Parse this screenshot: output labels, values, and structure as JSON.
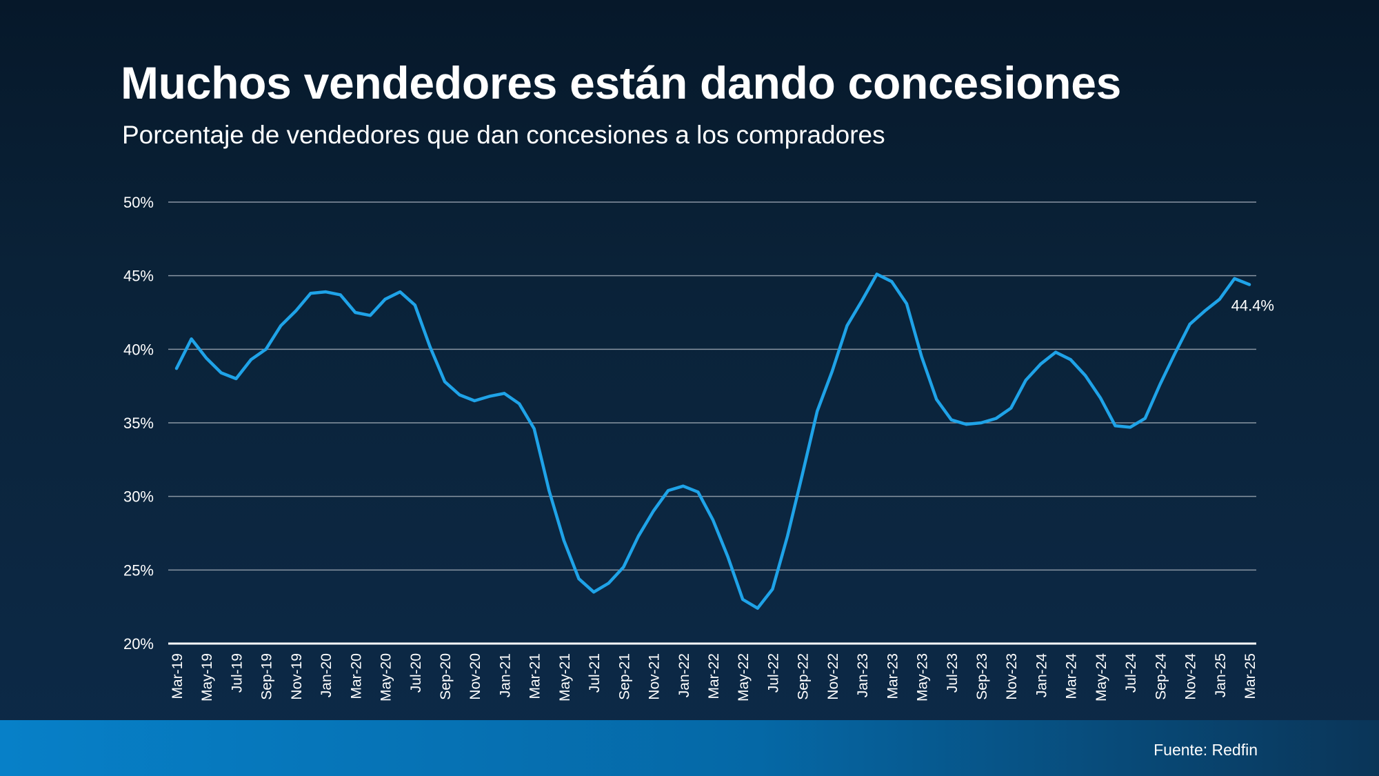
{
  "title": "Muchos vendedores están dando concesiones",
  "subtitle": "Porcentaje de vendedores que dan concesiones a los compradores",
  "source": "Fuente: Redfin",
  "colors": {
    "line": "#1fa3e8",
    "grid": "#8a96a3",
    "text": "#ffffff"
  },
  "chart_data": {
    "type": "line",
    "x_tick_labels": [
      "Mar-19",
      "May-19",
      "Jul-19",
      "Sep-19",
      "Nov-19",
      "Jan-20",
      "Mar-20",
      "May-20",
      "Jul-20",
      "Sep-20",
      "Nov-20",
      "Jan-21",
      "Mar-21",
      "May-21",
      "Jul-21",
      "Sep-21",
      "Nov-21",
      "Jan-22",
      "Mar-22",
      "May-22",
      "Jul-22",
      "Sep-22",
      "Nov-22",
      "Jan-23",
      "Mar-23",
      "May-23",
      "Jul-23",
      "Sep-23",
      "Nov-23",
      "Jan-24",
      "Mar-24",
      "May-24",
      "Jul-24",
      "Sep-24",
      "Nov-24",
      "Jan-25",
      "Mar-25"
    ],
    "y_ticks": [
      "20%",
      "25%",
      "30%",
      "35%",
      "40%",
      "45%",
      "50%"
    ],
    "ylim": [
      20,
      50
    ],
    "grid": true,
    "annotation": "44.4%",
    "series": [
      {
        "values": [
          38.7,
          40.7,
          39.4,
          38.4,
          38.0,
          39.3,
          40.0,
          41.6,
          42.6,
          43.8,
          43.9,
          43.7,
          42.5,
          42.3,
          43.4,
          43.9,
          43.0,
          40.2,
          37.8,
          36.9,
          36.5,
          36.8,
          37.0,
          36.3,
          34.6,
          30.4,
          27.0,
          24.4,
          23.5,
          24.1,
          25.2,
          27.3,
          29.0,
          30.4,
          30.7,
          30.3,
          28.4,
          25.9,
          23.0,
          22.4,
          23.7,
          27.3,
          31.5,
          35.8,
          38.5,
          41.6,
          43.3,
          45.1,
          44.6,
          43.1,
          39.5,
          36.6,
          35.2,
          34.9,
          35.0,
          35.3,
          36.0,
          37.9,
          39.0,
          39.8,
          39.3,
          38.2,
          36.7,
          34.8,
          34.7,
          35.3,
          37.6,
          39.7,
          41.7,
          42.6,
          43.4,
          44.8,
          44.4
        ]
      }
    ]
  }
}
